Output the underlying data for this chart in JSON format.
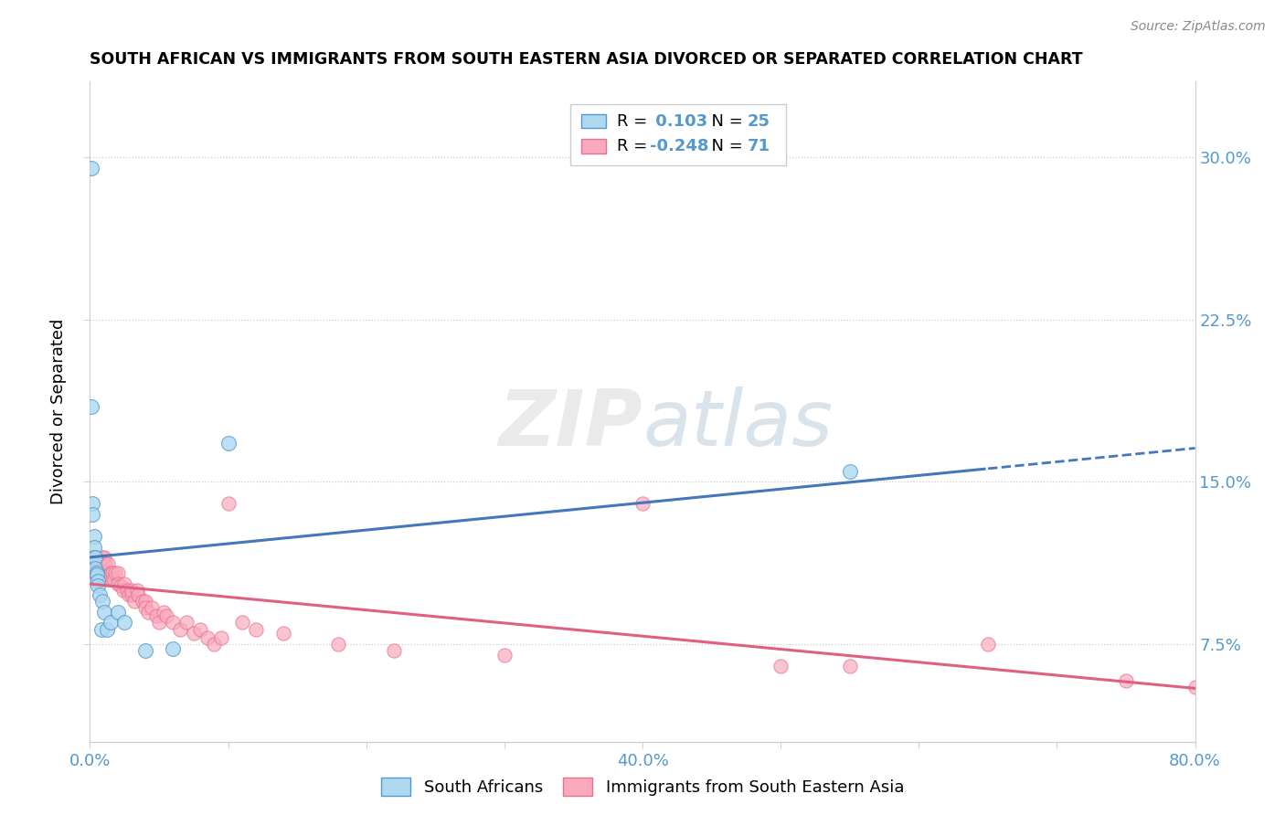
{
  "title": "SOUTH AFRICAN VS IMMIGRANTS FROM SOUTH EASTERN ASIA DIVORCED OR SEPARATED CORRELATION CHART",
  "source": "Source: ZipAtlas.com",
  "ylabel": "Divorced or Separated",
  "xlim": [
    0.0,
    0.8
  ],
  "ylim": [
    0.03,
    0.335
  ],
  "yticks_right": [
    0.075,
    0.15,
    0.225,
    0.3
  ],
  "ytick_labels_right": [
    "7.5%",
    "15.0%",
    "22.5%",
    "30.0%"
  ],
  "xtick_positions": [
    0.0,
    0.1,
    0.2,
    0.3,
    0.4,
    0.5,
    0.6,
    0.7,
    0.8
  ],
  "xtick_labels": [
    "0.0%",
    "",
    "",
    "",
    "40.0%",
    "",
    "",
    "",
    "80.0%"
  ],
  "watermark": "ZIPatlas",
  "legend_R1": "0.103",
  "legend_N1": "25",
  "legend_R2": "-0.248",
  "legend_N2": "71",
  "color_blue": "#ADD8F0",
  "color_pink": "#F9AABC",
  "color_blue_edge": "#5599CC",
  "color_pink_edge": "#E87090",
  "color_blue_line": "#4477BB",
  "color_pink_line": "#E06080",
  "color_tick": "#5599CC",
  "blue_x": [
    0.001,
    0.001,
    0.002,
    0.002,
    0.003,
    0.003,
    0.003,
    0.004,
    0.004,
    0.005,
    0.005,
    0.006,
    0.006,
    0.007,
    0.008,
    0.009,
    0.01,
    0.012,
    0.015,
    0.02,
    0.025,
    0.04,
    0.06,
    0.1,
    0.55
  ],
  "blue_y": [
    0.295,
    0.185,
    0.14,
    0.135,
    0.125,
    0.12,
    0.115,
    0.115,
    0.11,
    0.108,
    0.107,
    0.104,
    0.102,
    0.098,
    0.082,
    0.095,
    0.09,
    0.082,
    0.085,
    0.09,
    0.085,
    0.072,
    0.073,
    0.168,
    0.155
  ],
  "pink_x": [
    0.001,
    0.001,
    0.002,
    0.002,
    0.003,
    0.003,
    0.004,
    0.004,
    0.004,
    0.005,
    0.005,
    0.006,
    0.006,
    0.007,
    0.007,
    0.008,
    0.008,
    0.009,
    0.009,
    0.01,
    0.01,
    0.011,
    0.012,
    0.013,
    0.014,
    0.015,
    0.016,
    0.017,
    0.018,
    0.02,
    0.02,
    0.022,
    0.024,
    0.025,
    0.027,
    0.028,
    0.03,
    0.03,
    0.032,
    0.034,
    0.035,
    0.038,
    0.04,
    0.04,
    0.042,
    0.045,
    0.048,
    0.05,
    0.053,
    0.055,
    0.06,
    0.065,
    0.07,
    0.075,
    0.08,
    0.085,
    0.09,
    0.095,
    0.1,
    0.11,
    0.12,
    0.14,
    0.18,
    0.22,
    0.3,
    0.4,
    0.5,
    0.55,
    0.65,
    0.75,
    0.8
  ],
  "pink_y": [
    0.115,
    0.112,
    0.115,
    0.11,
    0.115,
    0.108,
    0.115,
    0.112,
    0.108,
    0.115,
    0.11,
    0.112,
    0.108,
    0.112,
    0.105,
    0.108,
    0.105,
    0.115,
    0.105,
    0.115,
    0.108,
    0.112,
    0.105,
    0.112,
    0.105,
    0.108,
    0.108,
    0.105,
    0.108,
    0.108,
    0.103,
    0.102,
    0.1,
    0.103,
    0.1,
    0.098,
    0.098,
    0.1,
    0.095,
    0.1,
    0.098,
    0.095,
    0.095,
    0.092,
    0.09,
    0.092,
    0.088,
    0.085,
    0.09,
    0.088,
    0.085,
    0.082,
    0.085,
    0.08,
    0.082,
    0.078,
    0.075,
    0.078,
    0.14,
    0.085,
    0.082,
    0.08,
    0.075,
    0.072,
    0.07,
    0.14,
    0.065,
    0.065,
    0.075,
    0.058,
    0.055
  ]
}
